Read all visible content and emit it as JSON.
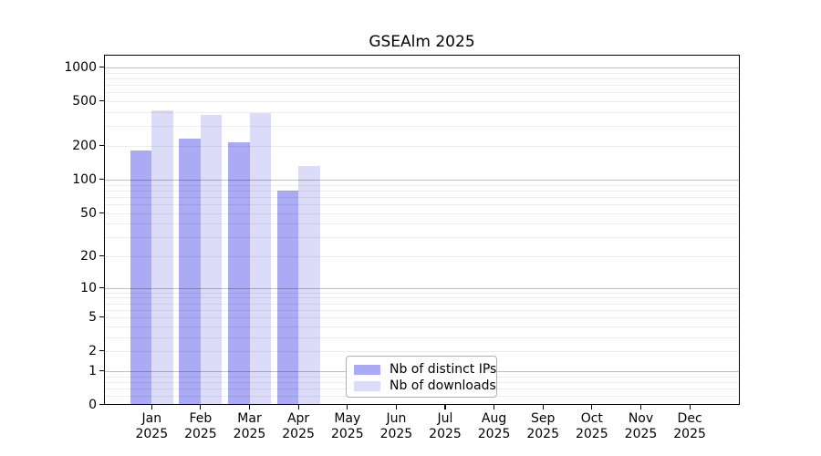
{
  "title": "GSEAlm 2025",
  "chart_data": {
    "type": "bar",
    "title": "GSEAlm 2025",
    "categories": [
      "Jan",
      "Feb",
      "Mar",
      "Apr",
      "May",
      "Jun",
      "Jul",
      "Aug",
      "Sep",
      "Oct",
      "Nov",
      "Dec"
    ],
    "x_year_label": "2025",
    "series": [
      {
        "name": "Nb of distinct IPs",
        "color": "#aaaaf5",
        "values": [
          180,
          230,
          210,
          78,
          null,
          null,
          null,
          null,
          null,
          null,
          null,
          null
        ]
      },
      {
        "name": "Nb of downloads",
        "color": "#dcdcf9",
        "values": [
          410,
          375,
          385,
          130,
          null,
          null,
          null,
          null,
          null,
          null,
          null,
          null
        ]
      }
    ],
    "xlabel": "",
    "ylabel": "",
    "y_scale": "log1p",
    "ylim": [
      0,
      1325
    ],
    "y_ticks": [
      0,
      1,
      2,
      5,
      10,
      20,
      50,
      100,
      200,
      500,
      1000
    ],
    "y_major_gridlines": [
      1,
      10,
      100,
      1000
    ],
    "y_minor_gridlines": [
      0.2,
      0.4,
      0.6,
      0.8,
      2,
      3,
      4,
      5,
      6,
      7,
      8,
      9,
      20,
      30,
      40,
      50,
      60,
      70,
      80,
      90,
      200,
      300,
      400,
      500,
      600,
      700,
      800,
      900
    ],
    "grid": true,
    "legend_position": "bottom-center"
  }
}
